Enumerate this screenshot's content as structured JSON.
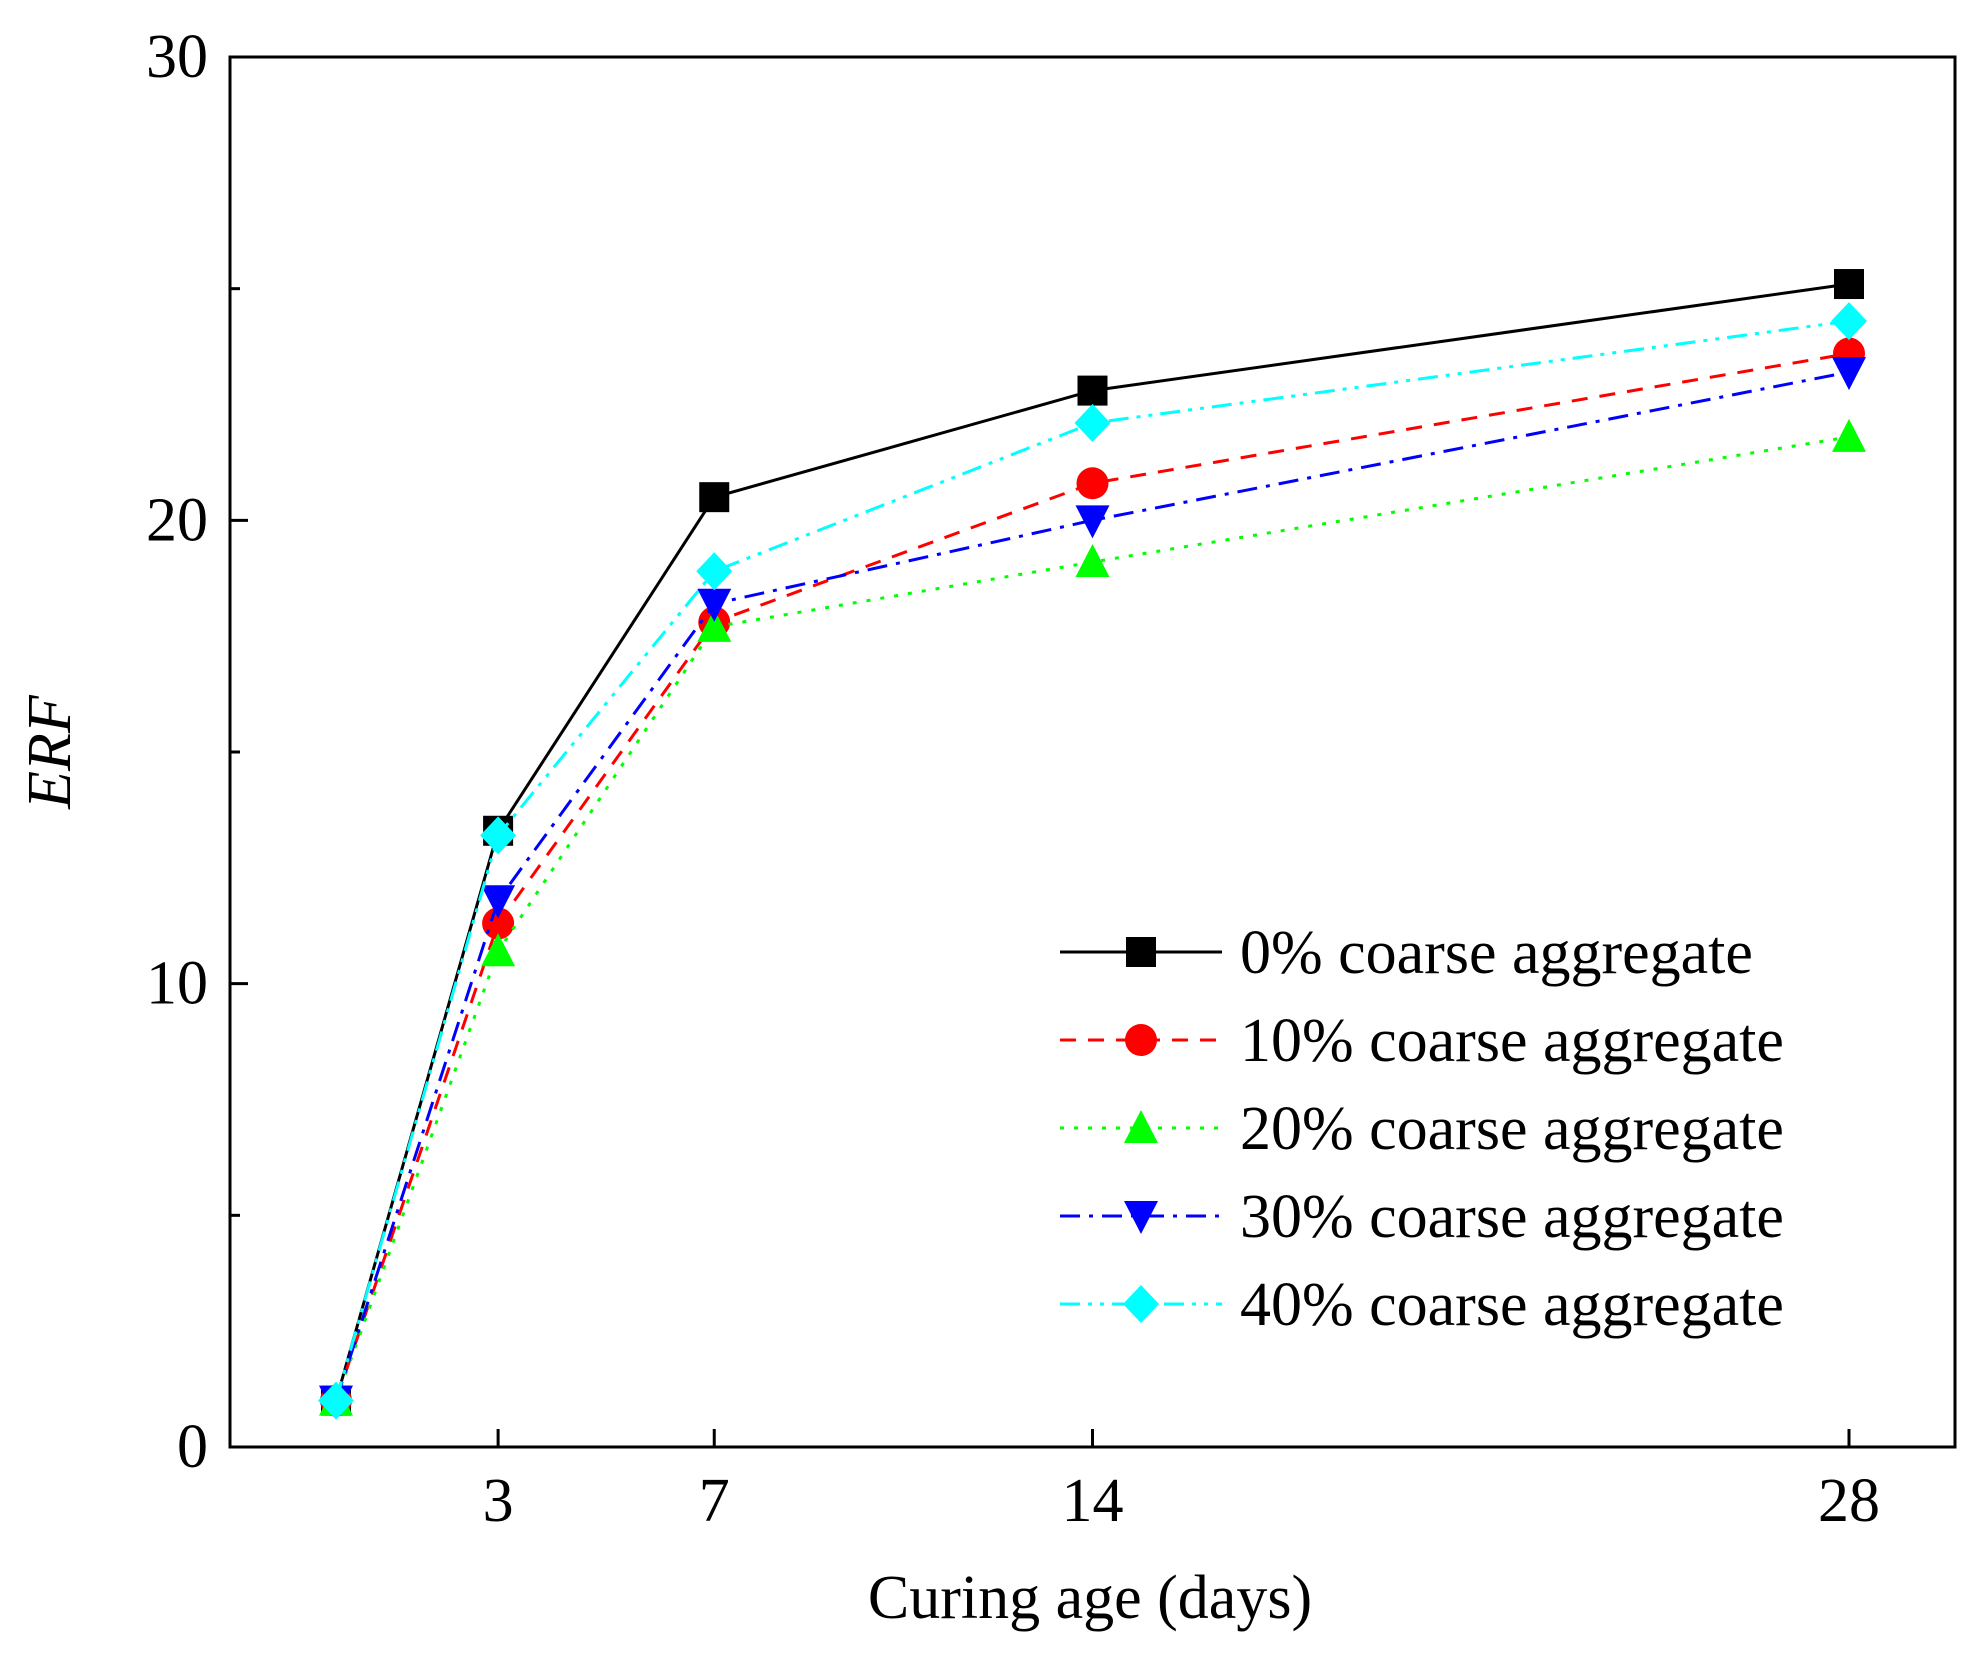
{
  "chart_data": {
    "type": "line",
    "xlabel": "Curing age (days)",
    "ylabel": "ERF",
    "ylim": [
      0,
      30
    ],
    "x_ticks": [
      "3",
      "7",
      "14",
      "28"
    ],
    "y_ticks": [
      "0",
      "10",
      "20",
      "30"
    ],
    "x": [
      0,
      3,
      7,
      14,
      28
    ],
    "grid": false,
    "legend_position": "lower-right",
    "series": [
      {
        "name": "0% coarse aggregate",
        "marker": "square",
        "line": "solid",
        "color": "#000000",
        "values": [
          1.0,
          13.3,
          20.5,
          22.8,
          25.1
        ]
      },
      {
        "name": "10% coarse aggregate",
        "marker": "circle",
        "line": "dash",
        "color": "#ff0000",
        "values": [
          1.0,
          11.3,
          17.8,
          20.8,
          23.6
        ]
      },
      {
        "name": "20% coarse aggregate",
        "marker": "triangle-up",
        "line": "dot",
        "color": "#00ff00",
        "values": [
          1.0,
          10.7,
          17.7,
          19.1,
          21.8
        ]
      },
      {
        "name": "30% coarse aggregate",
        "marker": "triangle-down",
        "line": "dash-dot",
        "color": "#0000ff",
        "values": [
          1.0,
          11.8,
          18.2,
          20.0,
          23.2
        ]
      },
      {
        "name": "40% coarse aggregate",
        "marker": "diamond",
        "line": "dash-dot-dot",
        "color": "#00ffff",
        "values": [
          1.0,
          13.2,
          18.9,
          22.1,
          24.3
        ]
      }
    ]
  }
}
